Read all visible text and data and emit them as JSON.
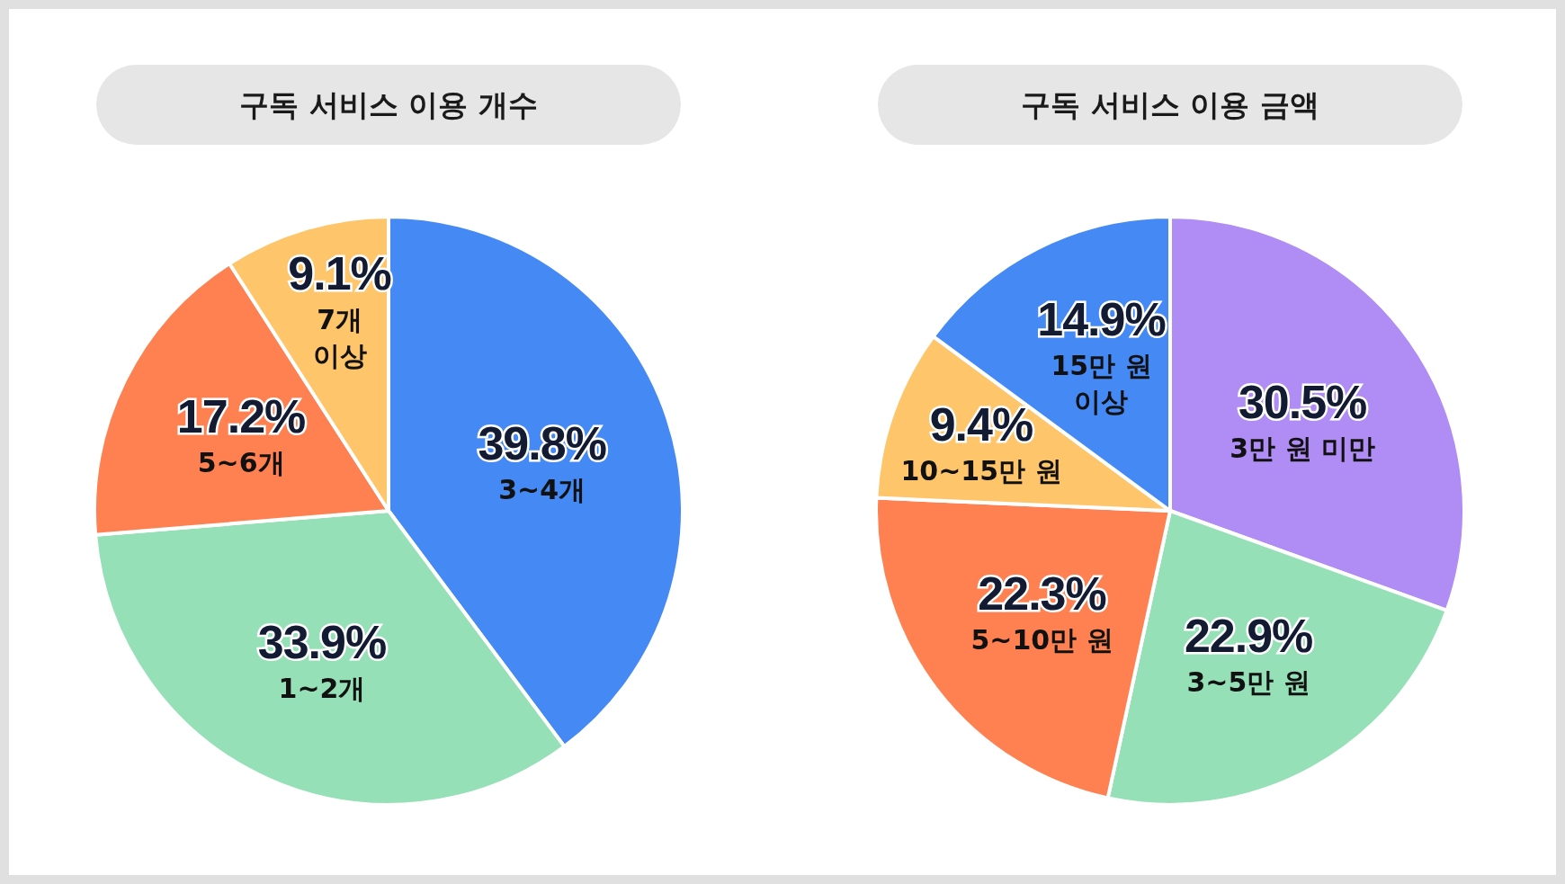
{
  "chart_data": [
    {
      "type": "pie",
      "title": "구독 서비스 이용 개수",
      "categories": [
        "3~4개",
        "1~2개",
        "5~6개",
        "7개 이상"
      ],
      "values": [
        39.8,
        33.9,
        17.2,
        9.1
      ],
      "colors": [
        "#4589f5",
        "#95e0b6",
        "#ff8152",
        "#ffc56a"
      ],
      "value_labels": [
        "39.8%",
        "33.9%",
        "17.2%",
        "9.1%"
      ]
    },
    {
      "type": "pie",
      "title": "구독 서비스 이용 금액",
      "categories": [
        "3만 원 미만",
        "3~5만 원",
        "5~10만 원",
        "10~15만 원",
        "15만 원 이상"
      ],
      "values": [
        30.5,
        22.9,
        22.3,
        9.4,
        14.9
      ],
      "colors": [
        "#b08cf5",
        "#95e0b6",
        "#ff8152",
        "#ffc56a",
        "#4589f5"
      ],
      "value_labels": [
        "30.5%",
        "22.9%",
        "22.3%",
        "9.4%",
        "14.9%"
      ]
    }
  ]
}
